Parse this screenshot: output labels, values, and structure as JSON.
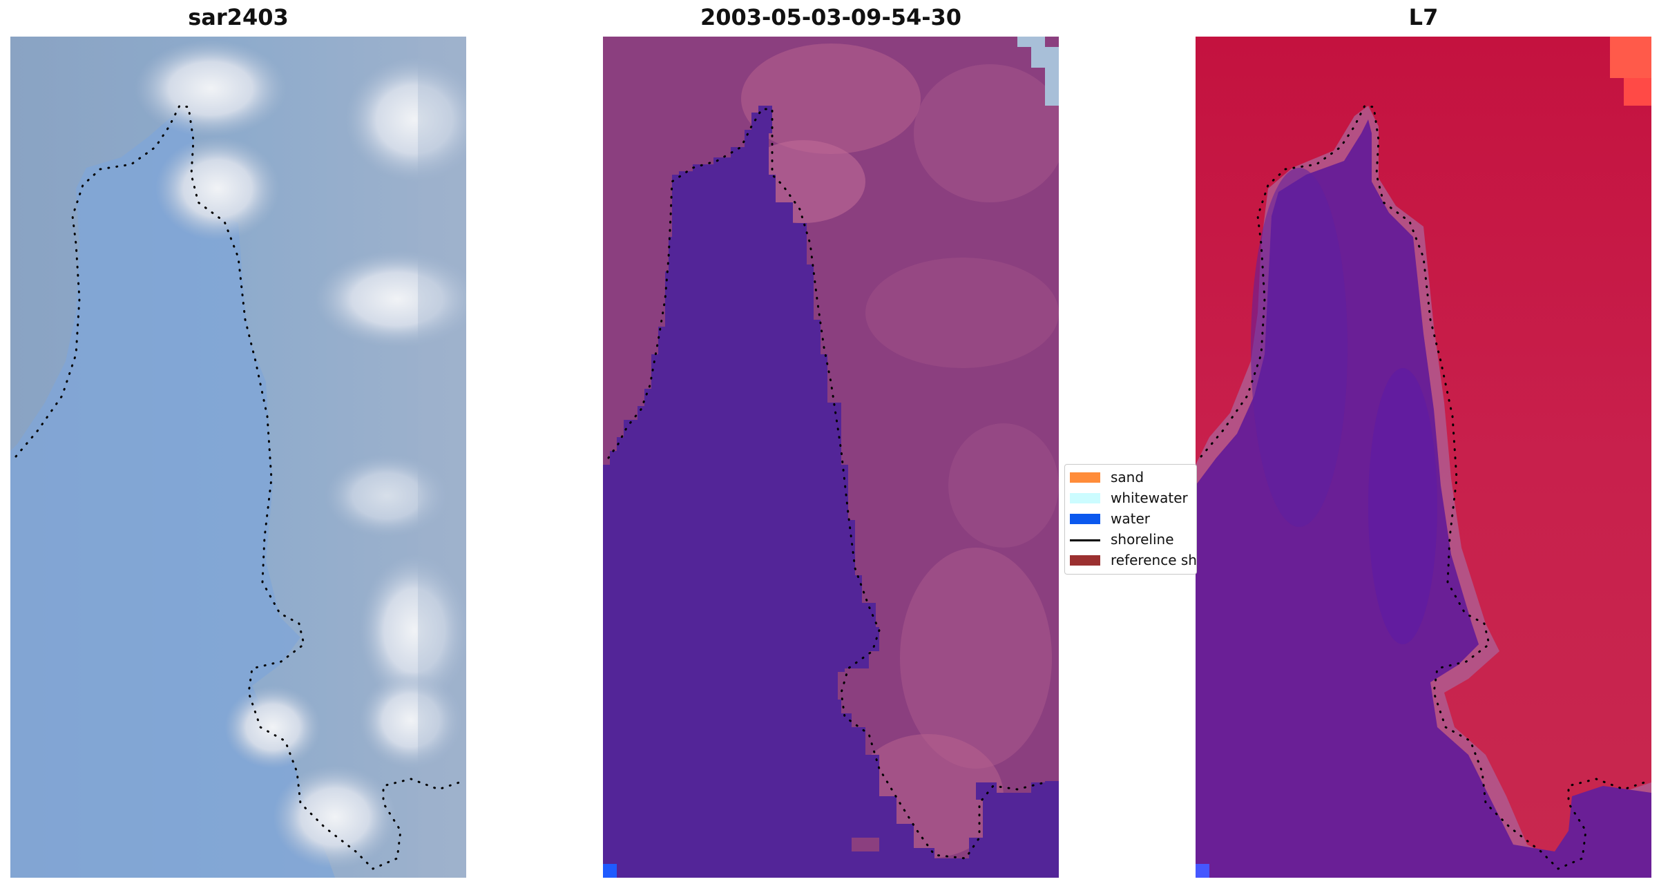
{
  "panels": [
    {
      "title": "sar2403",
      "image": "rgb-composite",
      "colors": {
        "base": "#8ea8c8",
        "shoreline_dots": "#000000"
      }
    },
    {
      "title": "2003-05-03-09-54-30",
      "image": "classified-image",
      "colors": {
        "water_class": "#532598",
        "land_base": "#8b3f7f",
        "land_highlight": "#b8638e",
        "water_pixel": "#1f5bff",
        "ice_corner": "#a8bfd8",
        "shoreline_dots": "#000000"
      }
    },
    {
      "title": "L7",
      "image": "mndwi-overlay",
      "colors": {
        "land": "#c5264d",
        "land_bright": "#ff5a4a",
        "water": "#6a1f96",
        "water_pixel": "#4557ff",
        "shoreline_dots": "#000000"
      }
    }
  ],
  "legend": {
    "items": [
      {
        "label": "sand",
        "color": "#ff8c3a",
        "kind": "patch",
        "icon": "sand-swatch"
      },
      {
        "label": "whitewater",
        "color": "#ccfcff",
        "kind": "patch",
        "icon": "whitewater-swatch"
      },
      {
        "label": "water",
        "color": "#0b58ee",
        "kind": "patch",
        "icon": "water-swatch"
      },
      {
        "label": "shoreline",
        "color": "#000000",
        "kind": "line",
        "icon": "shoreline-line"
      },
      {
        "label": "reference shoreline buffer",
        "color": "#9b3030",
        "kind": "patch",
        "icon": "reference-swatch"
      }
    ]
  }
}
